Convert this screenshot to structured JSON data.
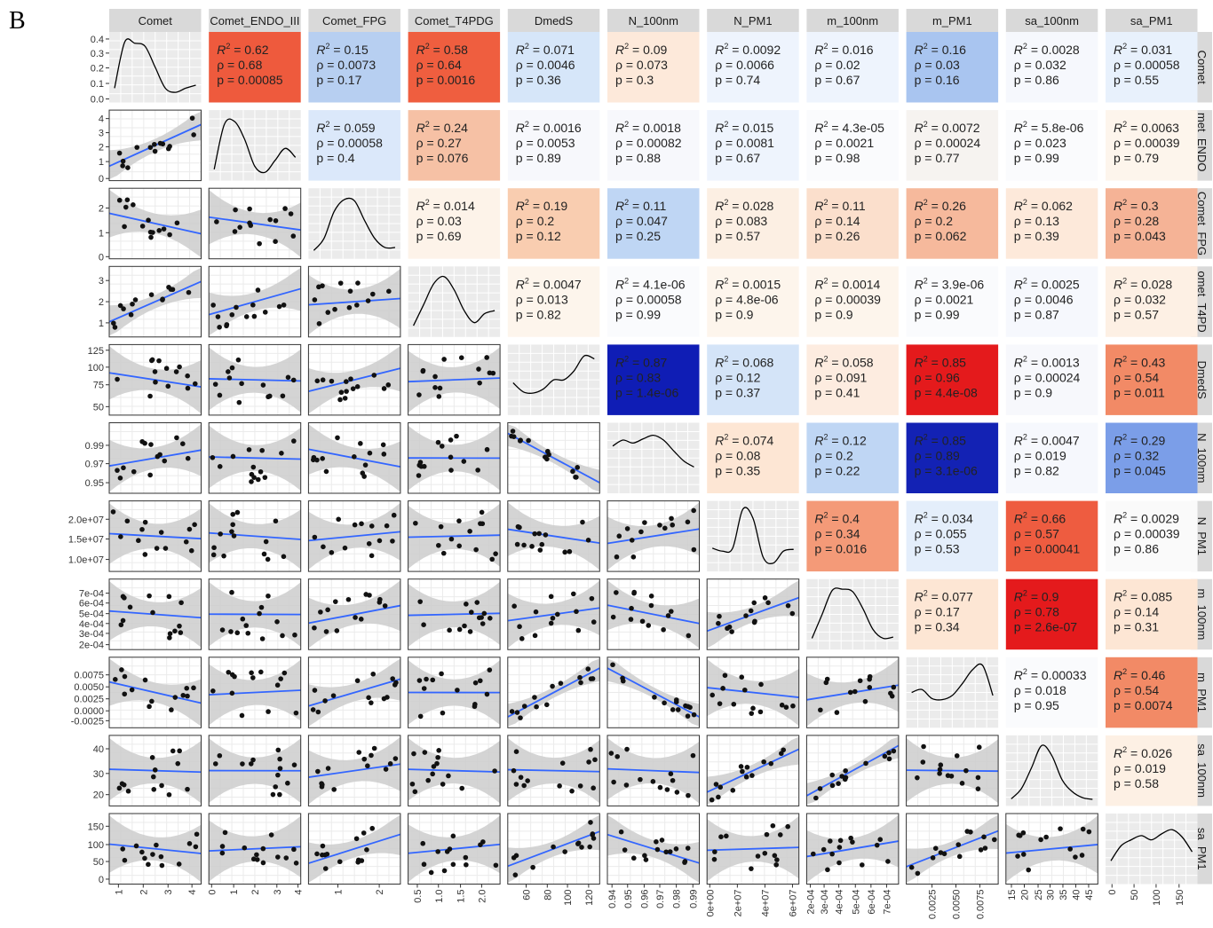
{
  "panel_label": "B",
  "chart_data": {
    "type": "scatter",
    "subtype": "pairs-matrix",
    "description_shown": false,
    "variables": [
      "Comet",
      "Comet_ENDO_III",
      "Comet_FPG",
      "Comet_T4PDG",
      "DmedS",
      "N_100nm",
      "N_PM1",
      "m_100nm",
      "m_PM1",
      "sa_100nm",
      "sa_PM1"
    ],
    "column_strip_labels": [
      "Comet",
      "Comet_ENDO_III",
      "Comet_FPG",
      "Comet_T4PDG",
      "DmedS",
      "N_100nm",
      "N_PM1",
      "m_100nm",
      "m_PM1",
      "sa_100nm",
      "sa_PM1"
    ],
    "row_strip_labels": [
      "Comet",
      "met_ENDO_",
      "Comet_FPG",
      "omet_T4PD",
      "DmedS",
      "N_100nm",
      "N_PM1",
      "m_100nm",
      "m_PM1",
      "sa_100nm",
      "sa_PM1"
    ],
    "y_ticks": [
      [
        "0.0",
        "0.1",
        "0.2",
        "0.3",
        "0.4"
      ],
      [
        "0",
        "1",
        "2",
        "3",
        "4"
      ],
      [
        "0",
        "1",
        "2"
      ],
      [
        "1",
        "2",
        "3"
      ],
      [
        "50",
        "75",
        "100",
        "125"
      ],
      [
        "0.95",
        "0.97",
        "0.99"
      ],
      [
        "1.0e+07",
        "1.5e+07",
        "2.0e+07"
      ],
      [
        "2e-04",
        "3e-04",
        "4e-04",
        "5e-04",
        "6e-04",
        "7e-04"
      ],
      [
        "-0.0025",
        "0.0000",
        "0.0025",
        "0.0050",
        "0.0075"
      ],
      [
        "20",
        "30",
        "40"
      ],
      [
        "0",
        "50",
        "100",
        "150"
      ]
    ],
    "y_tick_pos": [
      [
        0.05,
        0.27,
        0.49,
        0.7,
        0.9
      ],
      [
        0.03,
        0.27,
        0.48,
        0.68,
        0.88
      ],
      [
        0.03,
        0.37,
        0.72
      ],
      [
        0.2,
        0.5,
        0.8
      ],
      [
        0.12,
        0.43,
        0.68,
        0.92
      ],
      [
        0.15,
        0.42,
        0.68
      ],
      [
        0.17,
        0.46,
        0.74
      ],
      [
        0.07,
        0.23,
        0.37,
        0.51,
        0.66,
        0.8
      ],
      [
        0.1,
        0.24,
        0.41,
        0.58,
        0.75
      ],
      [
        0.16,
        0.46,
        0.81
      ],
      [
        0.07,
        0.32,
        0.56,
        0.82
      ]
    ],
    "x_ticks": [
      [
        "1",
        "2",
        "3",
        "4"
      ],
      [
        "0",
        "1",
        "2",
        "3",
        "4"
      ],
      [
        "1",
        "2"
      ],
      [
        "0.5",
        "1.0",
        "1.5",
        "2.0"
      ],
      [
        "60",
        "80",
        "100",
        "120"
      ],
      [
        "0.94",
        "0.95",
        "0.96",
        "0.97",
        "0.98",
        "0.99"
      ],
      [
        "0e+00",
        "2e+07",
        "4e+07",
        "6e+07"
      ],
      [
        "2e-04",
        "3e-04",
        "4e-04",
        "5e-04",
        "6e-04",
        "7e-04"
      ],
      [
        "0.0025",
        "0.0050",
        "0.0075"
      ],
      [
        "15",
        "20",
        "25",
        "30",
        "35",
        "40",
        "45"
      ],
      [
        "0",
        "50",
        "100",
        "150"
      ]
    ],
    "x_tick_pos": [
      [
        0.1,
        0.37,
        0.64,
        0.9
      ],
      [
        0.03,
        0.27,
        0.5,
        0.74,
        0.97
      ],
      [
        0.32,
        0.77
      ],
      [
        0.1,
        0.33,
        0.57,
        0.8
      ],
      [
        0.2,
        0.43,
        0.65,
        0.88
      ],
      [
        0.05,
        0.22,
        0.4,
        0.57,
        0.75,
        0.93
      ],
      [
        0.03,
        0.33,
        0.63,
        0.93
      ],
      [
        0.04,
        0.19,
        0.35,
        0.53,
        0.7,
        0.87
      ],
      [
        0.28,
        0.54,
        0.8
      ],
      [
        0.06,
        0.2,
        0.35,
        0.48,
        0.62,
        0.76,
        0.9
      ],
      [
        0.07,
        0.31,
        0.55,
        0.8
      ]
    ],
    "stat_labels": {
      "r2": "R",
      "r2_sup": "2",
      "rho": "ρ",
      "p": "p"
    },
    "correlations": [
      [
        "0",
        "1",
        "0.62",
        "0.68",
        "0.00085",
        "#ee5a3d"
      ],
      [
        "0",
        "2",
        "0.15",
        "0.0073",
        "0.17",
        "#b7cff1"
      ],
      [
        "0",
        "3",
        "0.58",
        "0.64",
        "0.0016",
        "#ef5e3f"
      ],
      [
        "0",
        "4",
        "0.071",
        "0.0046",
        "0.36",
        "#d6e6f9"
      ],
      [
        "0",
        "5",
        "0.09",
        "0.073",
        "0.3",
        "#fde9da"
      ],
      [
        "0",
        "6",
        "0.0092",
        "0.0066",
        "0.74",
        "#eef4fd"
      ],
      [
        "0",
        "7",
        "0.016",
        "0.02",
        "0.67",
        "#eef4fd"
      ],
      [
        "0",
        "8",
        "0.16",
        "0.03",
        "0.16",
        "#a9c5f0"
      ],
      [
        "0",
        "9",
        "0.0028",
        "0.032",
        "0.86",
        "#f6f8fd"
      ],
      [
        "0",
        "10",
        "0.031",
        "0.00058",
        "0.55",
        "#e8f1fc"
      ],
      [
        "1",
        "2",
        "0.059",
        "0.00058",
        "0.4",
        "#dbe8fa"
      ],
      [
        "1",
        "3",
        "0.24",
        "0.27",
        "0.076",
        "#f6c1a5"
      ],
      [
        "1",
        "4",
        "0.0016",
        "0.0053",
        "0.89",
        "#f7f8fc"
      ],
      [
        "1",
        "5",
        "0.0018",
        "0.00082",
        "0.88",
        "#f7f8fc"
      ],
      [
        "1",
        "6",
        "0.015",
        "0.0081",
        "0.67",
        "#eef4fd"
      ],
      [
        "1",
        "7",
        "4.3e-05",
        "0.0021",
        "0.98",
        "#fafbfd"
      ],
      [
        "1",
        "8",
        "0.0072",
        "0.00024",
        "0.77",
        "#f6f3f0"
      ],
      [
        "1",
        "9",
        "5.8e-06",
        "0.023",
        "0.99",
        "#fafbfd"
      ],
      [
        "1",
        "10",
        "0.0063",
        "0.00039",
        "0.79",
        "#fdf5ec"
      ],
      [
        "2",
        "3",
        "0.014",
        "0.03",
        "0.69",
        "#fdf3e9"
      ],
      [
        "2",
        "4",
        "0.19",
        "0.2",
        "0.12",
        "#f9cdb0"
      ],
      [
        "2",
        "5",
        "0.11",
        "0.047",
        "0.25",
        "#bfd6f4"
      ],
      [
        "2",
        "6",
        "0.028",
        "0.083",
        "0.57",
        "#fcefe3"
      ],
      [
        "2",
        "7",
        "0.11",
        "0.14",
        "0.26",
        "#fbdfcc"
      ],
      [
        "2",
        "8",
        "0.26",
        "0.2",
        "0.062",
        "#f6b99c"
      ],
      [
        "2",
        "9",
        "0.062",
        "0.13",
        "0.39",
        "#fde9da"
      ],
      [
        "2",
        "10",
        "0.3",
        "0.28",
        "0.043",
        "#f5b396"
      ],
      [
        "3",
        "4",
        "0.0047",
        "0.013",
        "0.82",
        "#fdf5ec"
      ],
      [
        "3",
        "5",
        "4.1e-06",
        "0.00058",
        "0.99",
        "#fafbfd"
      ],
      [
        "3",
        "6",
        "0.0015",
        "4.8e-06",
        "0.9",
        "#fdf5ec"
      ],
      [
        "3",
        "7",
        "0.0014",
        "0.00039",
        "0.9",
        "#fdf5ec"
      ],
      [
        "3",
        "8",
        "3.9e-06",
        "0.0021",
        "0.99",
        "#fafbfd"
      ],
      [
        "3",
        "9",
        "0.0025",
        "0.0046",
        "0.87",
        "#f6f8fd"
      ],
      [
        "3",
        "10",
        "0.028",
        "0.032",
        "0.57",
        "#fdf0e4"
      ],
      [
        "4",
        "5",
        "0.87",
        "0.83",
        "1.4e-06",
        "#0f1db5"
      ],
      [
        "4",
        "6",
        "0.068",
        "0.12",
        "0.37",
        "#d4e4f8"
      ],
      [
        "4",
        "7",
        "0.058",
        "0.091",
        "0.41",
        "#fdece0"
      ],
      [
        "4",
        "8",
        "0.85",
        "0.96",
        "4.4e-08",
        "#e41a1c"
      ],
      [
        "4",
        "9",
        "0.0013",
        "0.00024",
        "0.9",
        "#f7f8fc"
      ],
      [
        "4",
        "10",
        "0.43",
        "0.54",
        "0.011",
        "#f28a66"
      ],
      [
        "5",
        "6",
        "0.074",
        "0.08",
        "0.35",
        "#fde6d4"
      ],
      [
        "5",
        "7",
        "0.12",
        "0.2",
        "0.22",
        "#bfd6f4"
      ],
      [
        "5",
        "8",
        "0.85",
        "0.89",
        "3.1e-06",
        "#1322b4"
      ],
      [
        "5",
        "9",
        "0.0047",
        "0.019",
        "0.82",
        "#f6f8fd"
      ],
      [
        "5",
        "10",
        "0.29",
        "0.32",
        "0.045",
        "#7b9ee8"
      ],
      [
        "6",
        "7",
        "0.4",
        "0.34",
        "0.016",
        "#f49a78"
      ],
      [
        "6",
        "8",
        "0.034",
        "0.055",
        "0.53",
        "#e4eefb"
      ],
      [
        "6",
        "9",
        "0.66",
        "0.57",
        "0.00041",
        "#ee5c40"
      ],
      [
        "6",
        "10",
        "0.0029",
        "0.00039",
        "0.86",
        "#fafafa"
      ],
      [
        "7",
        "8",
        "0.077",
        "0.17",
        "0.34",
        "#fde6d4"
      ],
      [
        "7",
        "9",
        "0.9",
        "0.78",
        "2.6e-07",
        "#e41a1c"
      ],
      [
        "7",
        "10",
        "0.085",
        "0.14",
        "0.31",
        "#fde6d4"
      ],
      [
        "8",
        "9",
        "0.00033",
        "0.018",
        "0.95",
        "#fafbfd"
      ],
      [
        "8",
        "10",
        "0.46",
        "0.54",
        "0.0074",
        "#f28a66"
      ],
      [
        "9",
        "10",
        "0.026",
        "0.019",
        "0.58",
        "#fdf0e4"
      ]
    ],
    "density_shape": [
      [
        0.15,
        0.92,
        0.9,
        0.85,
        0.5,
        0.15,
        0.08,
        0.15,
        0.2
      ],
      [
        0.1,
        0.85,
        0.9,
        0.6,
        0.15,
        0.05,
        0.25,
        0.45,
        0.3
      ],
      [
        0.05,
        0.25,
        0.7,
        0.9,
        0.88,
        0.55,
        0.25,
        0.1,
        0.1
      ],
      [
        0.1,
        0.45,
        0.8,
        0.92,
        0.7,
        0.35,
        0.15,
        0.3,
        0.35
      ],
      [
        0.45,
        0.3,
        0.28,
        0.35,
        0.5,
        0.5,
        0.65,
        0.9,
        0.85
      ],
      [
        0.7,
        0.8,
        0.75,
        0.82,
        0.88,
        0.8,
        0.62,
        0.45,
        0.35
      ],
      [
        0.3,
        0.25,
        0.3,
        0.95,
        0.8,
        0.15,
        0.05,
        0.25,
        0.28
      ],
      [
        0.1,
        0.5,
        0.9,
        0.92,
        0.88,
        0.6,
        0.25,
        0.1,
        0.12
      ],
      [
        0.5,
        0.55,
        0.4,
        0.38,
        0.45,
        0.65,
        0.88,
        0.95,
        0.45
      ],
      [
        0.03,
        0.2,
        0.55,
        0.92,
        0.75,
        0.35,
        0.15,
        0.05,
        0.02
      ],
      [
        0.3,
        0.55,
        0.65,
        0.72,
        0.65,
        0.75,
        0.82,
        0.7,
        0.45
      ]
    ]
  }
}
